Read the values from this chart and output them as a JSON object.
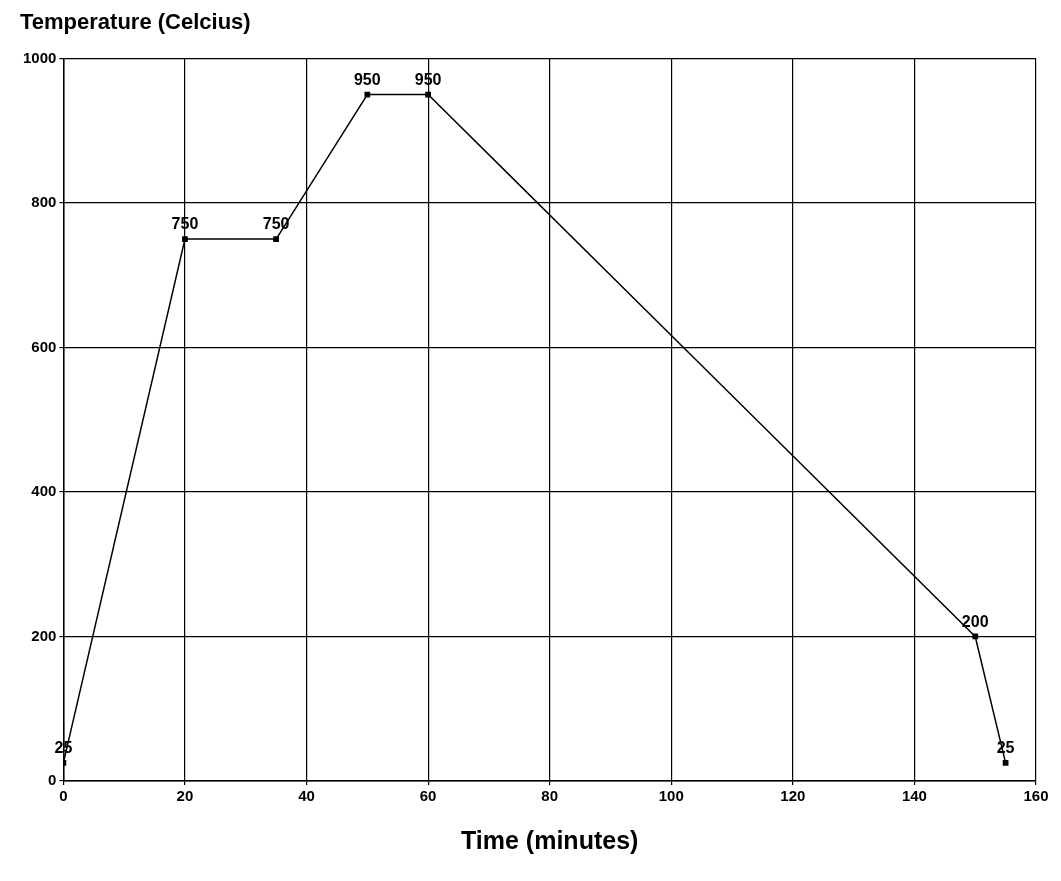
{
  "chart_data": {
    "type": "line",
    "ylabel": "Temperature (Celcius)",
    "xlabel": "Time (minutes)",
    "x": [
      0,
      20,
      35,
      50,
      60,
      150,
      155
    ],
    "series": [
      {
        "color": "#000000",
        "values": [
          25,
          750,
          750,
          950,
          950,
          200,
          25
        ]
      }
    ],
    "xlim": [
      0,
      160
    ],
    "xticks": [
      0,
      20,
      40,
      60,
      80,
      100,
      120,
      140,
      160
    ],
    "ylim": [
      0,
      1000
    ],
    "yticks": [
      0,
      200,
      400,
      600,
      800,
      1000
    ],
    "grid": true,
    "marker": "square",
    "line_style": "solid",
    "data_labels": true
  }
}
